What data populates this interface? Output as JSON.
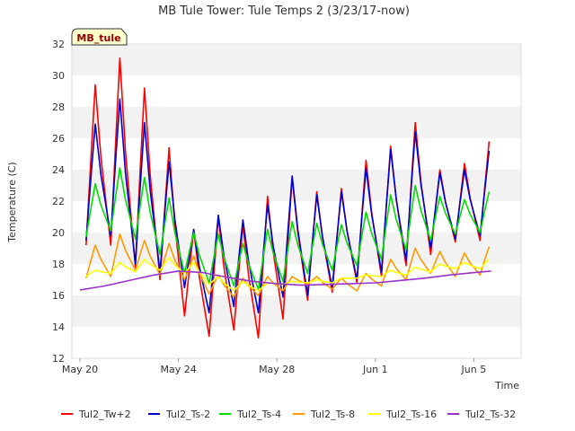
{
  "chart_data": {
    "type": "line",
    "title": "MB Tule Tower: Tule Temps 2 (3/23/17-now)",
    "xlabel": "Time",
    "ylabel": "Temperature (C)",
    "badge": "MB_tule",
    "ylim": [
      12,
      32
    ],
    "yticks": [
      12,
      14,
      16,
      18,
      20,
      22,
      24,
      26,
      28,
      30,
      32
    ],
    "xlim": [
      0,
      17.2
    ],
    "xticks": [
      {
        "x": 0,
        "label": "May 20"
      },
      {
        "x": 4,
        "label": "May 24"
      },
      {
        "x": 8,
        "label": "May 28"
      },
      {
        "x": 12,
        "label": "Jun 1"
      },
      {
        "x": 16,
        "label": "Jun 5"
      }
    ],
    "grid": "horizontal bands",
    "legend_position": "bottom",
    "series": [
      {
        "name": "Tul2_Tw+2",
        "color": "#ff0000",
        "mins": [
          19.2,
          19.2,
          17.8,
          17.0,
          14.7,
          13.4,
          13.8,
          13.3,
          14.5,
          15.7,
          16.2,
          16.8,
          17.2,
          17.9,
          18.6,
          19.4,
          19.5
        ],
        "maxs": [
          29.4,
          31.1,
          29.2,
          25.4,
          20.2,
          21.0,
          20.5,
          22.3,
          23.5,
          22.6,
          22.8,
          24.6,
          25.5,
          27.0,
          24.0,
          24.4,
          25.8
        ]
      },
      {
        "name": "Tul2_Ts-2",
        "color": "#0000cc",
        "mins": [
          19.5,
          19.8,
          18.0,
          17.5,
          16.5,
          14.9,
          15.3,
          14.9,
          15.9,
          16.0,
          16.5,
          17.0,
          17.5,
          18.2,
          19.0,
          19.6,
          19.8
        ],
        "maxs": [
          26.9,
          28.5,
          27.0,
          24.5,
          20.2,
          21.1,
          20.8,
          21.8,
          23.6,
          22.4,
          22.6,
          24.1,
          25.3,
          26.4,
          23.8,
          24.0,
          25.2
        ]
      },
      {
        "name": "Tul2_Ts-4",
        "color": "#00dd00",
        "mins": [
          19.7,
          20.1,
          19.6,
          18.6,
          17.4,
          16.8,
          16.6,
          16.4,
          16.9,
          17.4,
          17.6,
          17.9,
          18.3,
          18.9,
          19.5,
          19.9,
          20.0
        ],
        "maxs": [
          23.1,
          24.1,
          23.5,
          22.2,
          20.0,
          19.9,
          19.3,
          20.2,
          20.7,
          20.6,
          20.5,
          21.3,
          22.4,
          23.0,
          22.3,
          22.1,
          22.6
        ]
      },
      {
        "name": "Tul2_Ts-8",
        "color": "#ff9900",
        "mins": [
          17.1,
          17.2,
          17.6,
          17.3,
          17.0,
          16.1,
          15.9,
          16.0,
          16.3,
          16.7,
          16.4,
          16.3,
          16.6,
          17.0,
          17.4,
          17.2,
          17.3
        ],
        "maxs": [
          19.2,
          19.9,
          19.5,
          19.3,
          18.5,
          17.3,
          17.1,
          17.2,
          17.2,
          17.2,
          17.1,
          17.4,
          18.3,
          19.0,
          18.8,
          18.7,
          19.1
        ]
      },
      {
        "name": "Tul2_Ts-16",
        "color": "#ffff00",
        "mins": [
          17.2,
          17.4,
          17.5,
          17.6,
          17.4,
          16.7,
          16.3,
          16.3,
          16.7,
          16.8,
          16.8,
          17.1,
          17.2,
          17.3,
          17.5,
          17.7,
          17.7
        ],
        "maxs": [
          17.6,
          18.1,
          18.3,
          18.4,
          18.1,
          17.2,
          16.9,
          16.8,
          16.9,
          17.0,
          17.1,
          17.3,
          17.6,
          17.8,
          18.0,
          18.1,
          18.3
        ]
      },
      {
        "name": "Tul2_Ts-32",
        "color": "#9933cc",
        "points": [
          [
            0,
            16.35
          ],
          [
            1,
            16.6
          ],
          [
            2,
            16.95
          ],
          [
            3,
            17.3
          ],
          [
            4,
            17.55
          ],
          [
            5,
            17.45
          ],
          [
            6,
            17.15
          ],
          [
            7,
            16.9
          ],
          [
            8,
            16.75
          ],
          [
            9,
            16.65
          ],
          [
            10,
            16.7
          ],
          [
            11,
            16.75
          ],
          [
            12,
            16.8
          ],
          [
            13,
            16.95
          ],
          [
            14,
            17.1
          ],
          [
            15,
            17.3
          ],
          [
            16,
            17.45
          ],
          [
            16.7,
            17.55
          ]
        ]
      }
    ]
  }
}
